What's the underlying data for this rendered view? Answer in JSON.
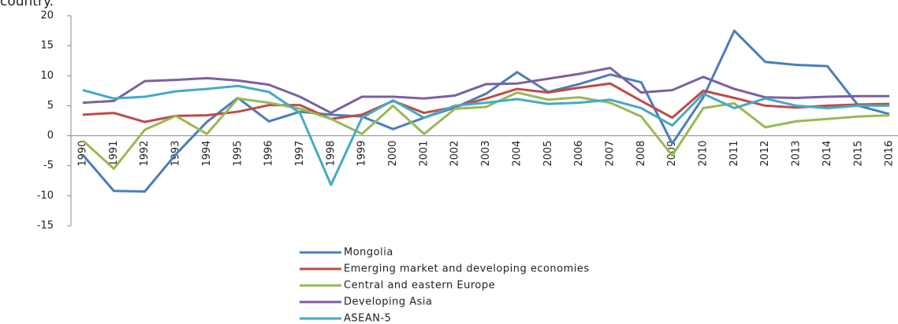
{
  "caption": "country.",
  "chart_data": {
    "type": "line",
    "categories": [
      "1990",
      "1991",
      "1992",
      "1993",
      "1994",
      "1995",
      "1996",
      "1997",
      "1998",
      "1999",
      "2000",
      "2001",
      "2002",
      "2003",
      "2004",
      "2005",
      "2006",
      "2007",
      "2008",
      "2009",
      "2010",
      "2011",
      "2012",
      "2013",
      "2014",
      "2015",
      "2016"
    ],
    "ylim": [
      -15,
      20
    ],
    "yticks": [
      -15,
      -10,
      -5,
      0,
      5,
      10,
      15,
      20
    ],
    "grid": false,
    "legend": "bottom",
    "series": [
      {
        "name": "Mongolia",
        "color": "#4a7ebb",
        "values": [
          -3.2,
          -9.2,
          -9.3,
          -3.1,
          2.3,
          6.3,
          2.4,
          4.0,
          3.5,
          3.2,
          1.1,
          3.0,
          4.7,
          7.0,
          10.6,
          7.3,
          8.6,
          10.2,
          8.9,
          -1.3,
          6.4,
          17.5,
          12.3,
          11.8,
          11.6,
          5.0,
          3.6
        ]
      },
      {
        "name": "Emerging market and developing economies",
        "color": "#be4b48",
        "values": [
          3.5,
          3.8,
          2.3,
          3.3,
          3.4,
          4.0,
          5.1,
          5.1,
          2.8,
          3.5,
          5.8,
          3.8,
          4.8,
          6.2,
          7.8,
          7.2,
          8.0,
          8.7,
          5.8,
          3.0,
          7.5,
          6.3,
          5.0,
          4.7,
          5.0,
          5.2,
          5.3
        ]
      },
      {
        "name": "Central and eastern Europe",
        "color": "#98b954",
        "values": [
          -0.8,
          -5.5,
          1.0,
          3.3,
          0.3,
          6.2,
          5.5,
          4.5,
          2.8,
          0.3,
          5.0,
          0.3,
          4.5,
          4.8,
          7.2,
          6.0,
          6.4,
          5.5,
          3.2,
          -3.3,
          4.6,
          5.4,
          1.4,
          2.4,
          2.8,
          3.2,
          3.4
        ]
      },
      {
        "name": "Developing Asia",
        "color": "#7d60a0",
        "values": [
          5.5,
          5.8,
          9.1,
          9.3,
          9.6,
          9.2,
          8.5,
          6.5,
          3.8,
          6.5,
          6.5,
          6.2,
          6.7,
          8.6,
          8.7,
          9.5,
          10.3,
          11.3,
          7.2,
          7.6,
          9.8,
          7.8,
          6.4,
          6.3,
          6.5,
          6.6,
          6.6
        ]
      },
      {
        "name": "ASEAN-5",
        "color": "#46aac5",
        "values": [
          7.6,
          6.2,
          6.5,
          7.4,
          7.8,
          8.3,
          7.3,
          3.8,
          -8.2,
          3.0,
          5.9,
          3.0,
          5.0,
          5.5,
          6.1,
          5.3,
          5.5,
          6.0,
          4.6,
          1.7,
          7.0,
          4.6,
          6.2,
          5.0,
          4.6,
          5.0,
          5.0
        ]
      }
    ]
  }
}
